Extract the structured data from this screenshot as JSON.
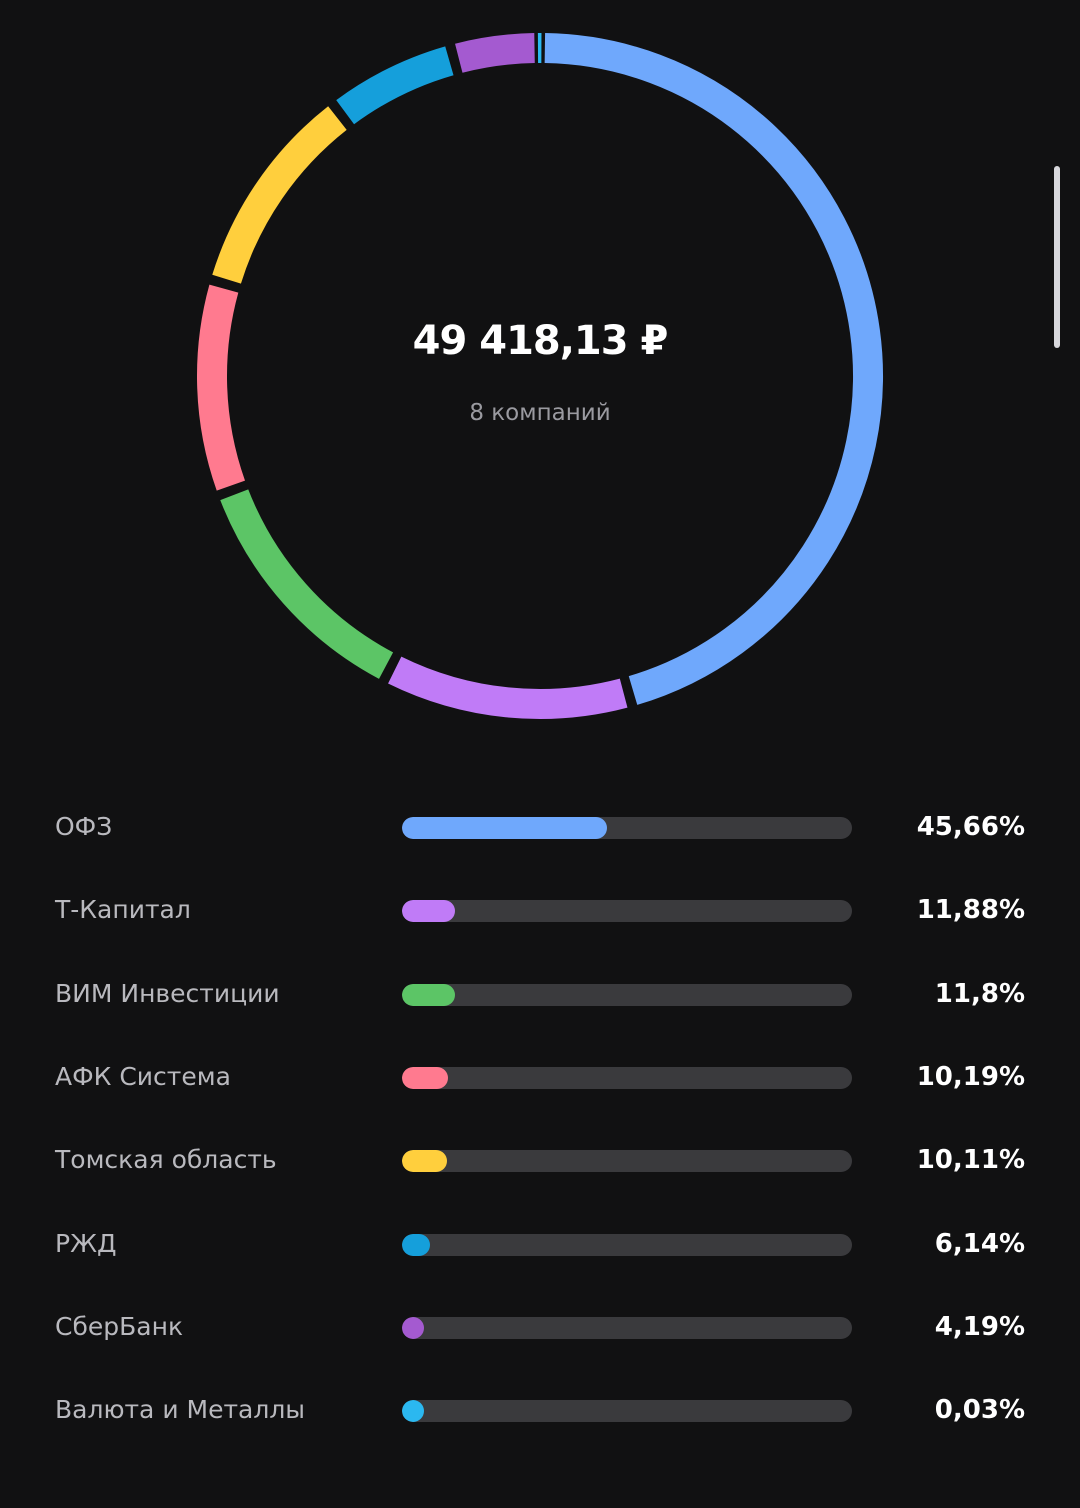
{
  "summary": {
    "total": "49 418,13 ₽",
    "count_label": "8 компаний"
  },
  "chart_data": {
    "type": "donut",
    "categories": [
      "ОФЗ",
      "Т-Капитал",
      "ВИМ Инвестиции",
      "АФК Система",
      "Томская область",
      "РЖД",
      "СберБанк",
      "Валюта и Металлы"
    ],
    "values": [
      45.66,
      11.88,
      11.8,
      10.19,
      10.11,
      6.14,
      4.19,
      0.03
    ],
    "value_labels": [
      "45,66%",
      "11,88%",
      "11,8%",
      "10,19%",
      "10,11%",
      "6,14%",
      "4,19%",
      "0,03%"
    ],
    "colors": [
      "#6fa8fc",
      "#c07bf7",
      "#5cc566",
      "#ff7a8f",
      "#ffcf3d",
      "#159fdb",
      "#a45ad0",
      "#2bb8f0"
    ],
    "unit": "%"
  }
}
